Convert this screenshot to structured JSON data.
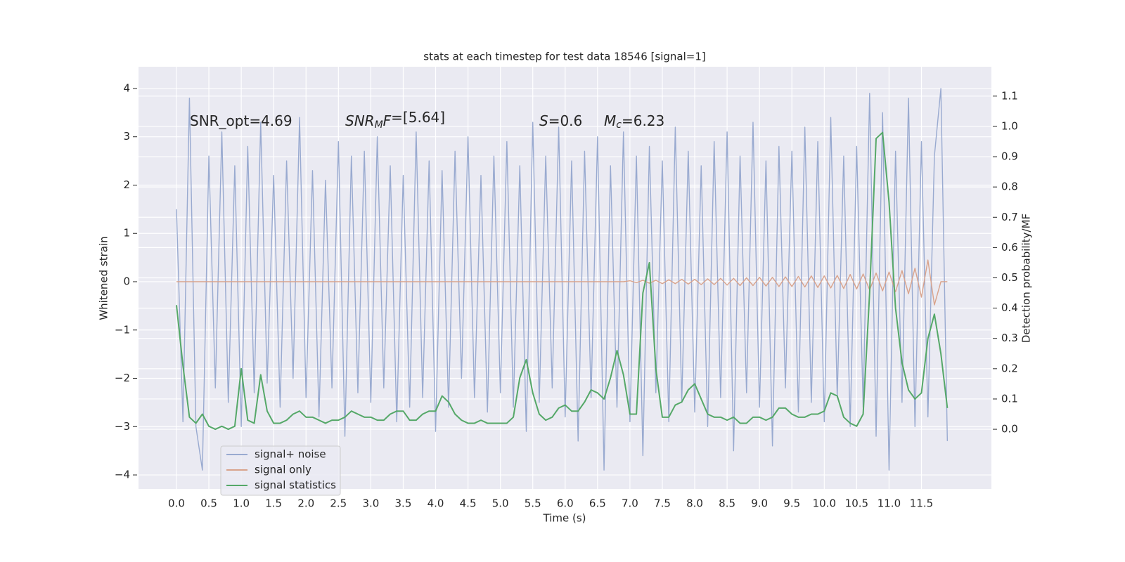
{
  "chart_data": {
    "type": "line",
    "title": "stats at each timestep for test data 18546 [signal=1]",
    "xlabel": "Time (s)",
    "ylabel": "Whitened strain",
    "y2label": "Detection probability/MF",
    "annotations": [
      {
        "text": "SNR_opt=4.69"
      },
      {
        "math": "SNR",
        "sub": "M",
        "math2": "F",
        "text": "=[5.64]"
      },
      {
        "math": "S",
        "text": "=0.6"
      },
      {
        "math": "M",
        "sub": "c",
        "text": "=6.23"
      }
    ],
    "grid": true,
    "legend": "lower left",
    "xlim": [
      -0.586,
      12.58
    ],
    "ylim": [
      -4.29,
      4.45
    ],
    "y2lim": [
      -0.197,
      1.197
    ],
    "xticks": [
      {
        "value": 0,
        "label": "0.0"
      },
      0.5,
      {
        "value": 1,
        "label": "1.0"
      },
      1.5,
      {
        "value": 2,
        "label": "2.0"
      },
      2.5,
      {
        "value": 3,
        "label": "3.0"
      },
      3.5,
      {
        "value": 4,
        "label": "4.0"
      },
      4.5,
      {
        "value": 5,
        "label": "5.0"
      },
      5.5,
      {
        "value": 6,
        "label": "6.0"
      },
      6.5,
      {
        "value": 7,
        "label": "7.0"
      },
      7.5,
      {
        "value": 8,
        "label": "8.0"
      },
      8.5,
      {
        "value": 9,
        "label": "9.0"
      },
      9.5,
      {
        "value": 10,
        "label": "10.0"
      },
      10.5,
      {
        "value": 11,
        "label": "11.0"
      },
      11.5
    ],
    "yticks": [
      {
        "value": -4,
        "label": "−4"
      },
      {
        "value": -3,
        "label": "−3"
      },
      {
        "value": -2,
        "label": "−2"
      },
      {
        "value": -1,
        "label": "−1"
      },
      0,
      1,
      2,
      3,
      4
    ],
    "y2ticks": [
      {
        "value": 0,
        "label": "0.0"
      },
      0.1,
      0.2,
      0.3,
      0.4,
      0.5,
      0.6,
      0.7,
      0.8,
      0.9,
      {
        "value": 1,
        "label": "1.0"
      },
      1.1
    ],
    "x": [
      0.0,
      0.1,
      0.2,
      0.3,
      0.4,
      0.5,
      0.6,
      0.7,
      0.8,
      0.9,
      1.0,
      1.1,
      1.2,
      1.3,
      1.4,
      1.5,
      1.6,
      1.7,
      1.8,
      1.9,
      2.0,
      2.1,
      2.2,
      2.3,
      2.4,
      2.5,
      2.6,
      2.7,
      2.8,
      2.9,
      3.0,
      3.1,
      3.2,
      3.3,
      3.4,
      3.5,
      3.6,
      3.7,
      3.8,
      3.9,
      4.0,
      4.1,
      4.2,
      4.3,
      4.4,
      4.5,
      4.6,
      4.7,
      4.8,
      4.9,
      5.0,
      5.1,
      5.2,
      5.3,
      5.4,
      5.5,
      5.6,
      5.7,
      5.8,
      5.9,
      6.0,
      6.1,
      6.2,
      6.3,
      6.4,
      6.5,
      6.6,
      6.7,
      6.8,
      6.9,
      7.0,
      7.1,
      7.2,
      7.3,
      7.4,
      7.5,
      7.6,
      7.7,
      7.8,
      7.9,
      8.0,
      8.1,
      8.2,
      8.3,
      8.4,
      8.5,
      8.6,
      8.7,
      8.8,
      8.9,
      9.0,
      9.1,
      9.2,
      9.3,
      9.4,
      9.5,
      9.6,
      9.7,
      9.8,
      9.9,
      10.0,
      10.1,
      10.2,
      10.3,
      10.4,
      10.5,
      10.6,
      10.7,
      10.8,
      10.9,
      11.0,
      11.1,
      11.2,
      11.3,
      11.4,
      11.5,
      11.6,
      11.7,
      11.8,
      11.9
    ],
    "series": [
      {
        "name": "signal+ noise",
        "color": "#99aad0",
        "values": [
          1.5,
          -2.9,
          3.8,
          -3.0,
          -3.9,
          2.6,
          -2.2,
          3.1,
          -2.5,
          2.4,
          -3.0,
          2.8,
          -2.3,
          3.3,
          -2.1,
          2.2,
          -2.6,
          2.5,
          -2.0,
          3.4,
          -2.4,
          2.3,
          -2.8,
          2.1,
          -2.2,
          2.9,
          -3.2,
          2.6,
          -2.3,
          2.7,
          -2.5,
          3.0,
          -2.2,
          2.4,
          -2.9,
          2.2,
          -2.6,
          3.1,
          -2.4,
          2.5,
          -3.1,
          2.3,
          -2.6,
          2.7,
          -2.0,
          3.0,
          -2.4,
          2.2,
          -2.7,
          2.6,
          -2.3,
          2.9,
          -2.6,
          2.4,
          -3.1,
          3.3,
          -2.5,
          2.6,
          -2.2,
          3.2,
          -2.8,
          2.5,
          -3.3,
          2.7,
          -2.4,
          3.0,
          -3.9,
          2.4,
          -2.6,
          3.1,
          -2.9,
          2.6,
          -3.6,
          2.8,
          -2.3,
          2.5,
          -2.9,
          3.2,
          -2.5,
          2.7,
          -2.7,
          2.4,
          -3.0,
          2.9,
          -2.4,
          3.1,
          -3.5,
          2.6,
          -2.3,
          3.3,
          -2.6,
          2.5,
          -3.4,
          2.8,
          -2.2,
          2.7,
          -2.7,
          3.2,
          -2.5,
          2.9,
          -2.9,
          3.4,
          -2.4,
          2.6,
          -3.0,
          2.8,
          -2.6,
          3.9,
          -3.2,
          3.5,
          -3.9,
          2.7,
          -2.5,
          3.8,
          -3.0,
          2.9,
          -2.8,
          2.6,
          4.0,
          -3.3
        ]
      },
      {
        "name": "signal only",
        "color": "#d9a38c",
        "values": [
          0,
          0,
          0,
          0,
          0,
          0,
          0,
          0,
          0,
          0,
          0,
          0,
          0,
          0,
          0,
          0,
          0,
          0,
          0,
          0,
          0,
          0,
          0,
          0,
          0,
          0,
          0,
          0,
          0,
          0,
          0,
          0,
          0,
          0,
          0,
          0,
          0,
          0,
          0,
          0,
          0,
          0,
          0,
          0,
          0,
          0,
          0,
          0,
          0,
          0,
          0,
          0,
          0,
          0,
          0,
          0,
          0,
          0,
          0,
          0,
          0,
          0,
          0,
          0,
          0,
          0,
          0,
          0,
          0,
          0,
          0.02,
          -0.02,
          0.03,
          -0.03,
          0.03,
          -0.04,
          0.04,
          -0.04,
          0.05,
          -0.05,
          0.05,
          -0.06,
          0.06,
          -0.06,
          0.07,
          -0.07,
          0.07,
          -0.08,
          0.08,
          -0.08,
          0.09,
          -0.09,
          0.09,
          -0.1,
          0.1,
          -0.1,
          0.11,
          -0.11,
          0.12,
          -0.12,
          0.12,
          -0.13,
          0.13,
          -0.14,
          0.15,
          -0.15,
          0.16,
          -0.17,
          0.18,
          -0.19,
          0.2,
          -0.21,
          0.23,
          -0.25,
          0.28,
          -0.32,
          0.45,
          -0.48,
          0,
          0
        ]
      },
      {
        "name": "signal statistics",
        "color": "#55a868",
        "axis": "y2",
        "values": [
          0.41,
          0.21,
          0.04,
          0.02,
          0.05,
          0.01,
          0.0,
          0.01,
          0.0,
          0.01,
          0.2,
          0.03,
          0.02,
          0.18,
          0.06,
          0.02,
          0.02,
          0.03,
          0.05,
          0.06,
          0.04,
          0.04,
          0.03,
          0.02,
          0.03,
          0.03,
          0.04,
          0.06,
          0.05,
          0.04,
          0.04,
          0.03,
          0.03,
          0.05,
          0.06,
          0.06,
          0.03,
          0.03,
          0.05,
          0.06,
          0.06,
          0.11,
          0.09,
          0.05,
          0.03,
          0.02,
          0.02,
          0.03,
          0.02,
          0.02,
          0.02,
          0.02,
          0.04,
          0.17,
          0.23,
          0.12,
          0.05,
          0.03,
          0.04,
          0.07,
          0.08,
          0.06,
          0.06,
          0.09,
          0.13,
          0.12,
          0.1,
          0.17,
          0.26,
          0.18,
          0.05,
          0.05,
          0.45,
          0.55,
          0.2,
          0.04,
          0.04,
          0.08,
          0.09,
          0.13,
          0.15,
          0.1,
          0.05,
          0.04,
          0.04,
          0.03,
          0.04,
          0.02,
          0.02,
          0.04,
          0.04,
          0.03,
          0.04,
          0.07,
          0.07,
          0.05,
          0.04,
          0.04,
          0.05,
          0.05,
          0.06,
          0.12,
          0.11,
          0.04,
          0.02,
          0.01,
          0.05,
          0.45,
          0.96,
          0.98,
          0.75,
          0.4,
          0.22,
          0.13,
          0.1,
          0.12,
          0.3,
          0.38,
          0.25,
          0.07
        ]
      }
    ]
  }
}
